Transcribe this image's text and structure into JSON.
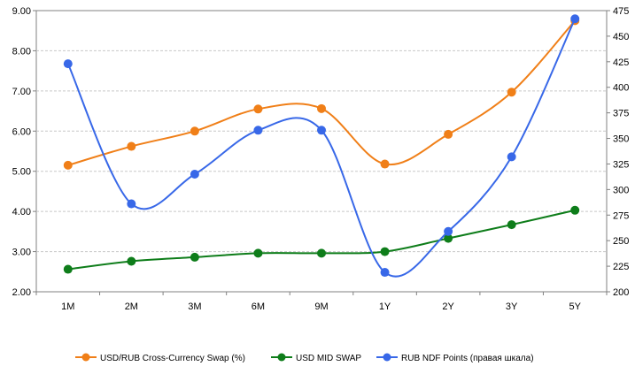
{
  "chart_data": {
    "type": "line",
    "categories": [
      "1M",
      "2M",
      "3M",
      "6M",
      "9M",
      "1Y",
      "2Y",
      "3Y",
      "5Y"
    ],
    "series": [
      {
        "name": "USD/RUB Cross-Currency Swap (%)",
        "axis": "left",
        "color": "#f07f18",
        "values": [
          5.15,
          5.62,
          6.0,
          6.55,
          6.56,
          5.18,
          5.92,
          6.97,
          8.75
        ]
      },
      {
        "name": "USD MID SWAP",
        "axis": "left",
        "color": "#0e7d1a",
        "values": [
          2.56,
          2.76,
          2.86,
          2.96,
          2.96,
          3.0,
          3.33,
          3.67,
          4.03
        ]
      },
      {
        "name": "RUB NDF Points (правая шкала)",
        "axis": "right",
        "color": "#3868e8",
        "values": [
          423,
          286,
          315,
          358,
          358,
          219,
          259,
          332,
          467
        ]
      }
    ],
    "y_left": {
      "range": [
        2.0,
        9.0
      ],
      "ticks": [
        "2.00",
        "3.00",
        "4.00",
        "5.00",
        "6.00",
        "7.00",
        "8.00",
        "9.00"
      ]
    },
    "y_right": {
      "range": [
        200,
        475
      ],
      "ticks": [
        "200",
        "225",
        "250",
        "275",
        "300",
        "325",
        "350",
        "375",
        "400",
        "425",
        "450",
        "475"
      ]
    },
    "grid": true,
    "legend_position": "bottom",
    "smooth_lines": true
  }
}
